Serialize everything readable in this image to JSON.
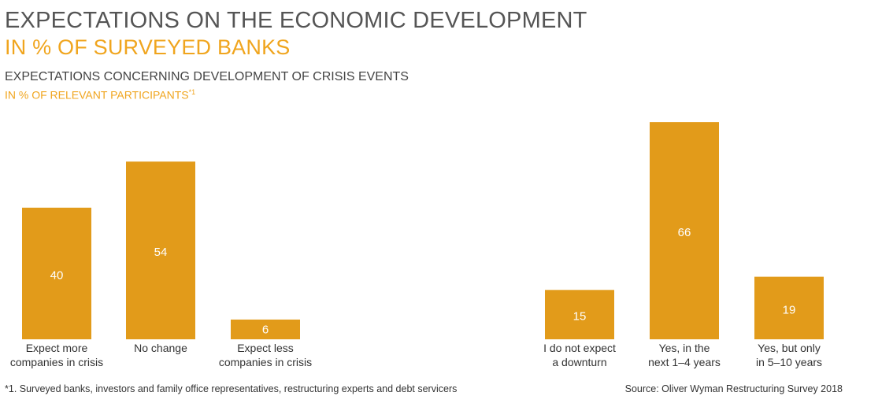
{
  "header": {
    "title_line1": "EXPECTATIONS ON THE ECONOMIC DEVELOPMENT",
    "title_line2": "IN % OF SURVEYED BANKS",
    "subtitle_line1": "EXPECTATIONS CONCERNING DEVELOPMENT OF CRISIS EVENTS",
    "subtitle_line2": "IN % OF RELEVANT PARTICIPANTS",
    "subtitle_marker": "*1"
  },
  "footer": {
    "footnote": "*1. Surveyed banks, investors and family office representatives, restructuring experts and debt servicers",
    "source": "Source: Oliver Wyman Restructuring Survey 2018"
  },
  "colors": {
    "bar": "#e29b1a",
    "bar_label": "#ffffff",
    "axis_label": "#333333",
    "baseline": "#888888"
  },
  "chart_data": [
    {
      "type": "bar",
      "title": "",
      "xlabel": "",
      "ylabel": "",
      "ylim": [
        0,
        70
      ],
      "categories": [
        [
          "Expect more",
          "companies in crisis"
        ],
        [
          "No change"
        ],
        [
          "Expect less",
          "companies in crisis"
        ]
      ],
      "values": [
        40,
        54,
        6
      ],
      "data_labels": [
        "40",
        "54",
        "6"
      ]
    },
    {
      "type": "bar",
      "title": "",
      "xlabel": "",
      "ylabel": "",
      "ylim": [
        0,
        70
      ],
      "categories": [
        [
          "I do not expect",
          "a downturn"
        ],
        [
          "Yes, in the",
          "next 1–4 years"
        ],
        [
          "Yes, but only",
          "in 5–10 years"
        ]
      ],
      "values": [
        15,
        66,
        19
      ],
      "data_labels": [
        "15",
        "66",
        "19"
      ]
    }
  ]
}
